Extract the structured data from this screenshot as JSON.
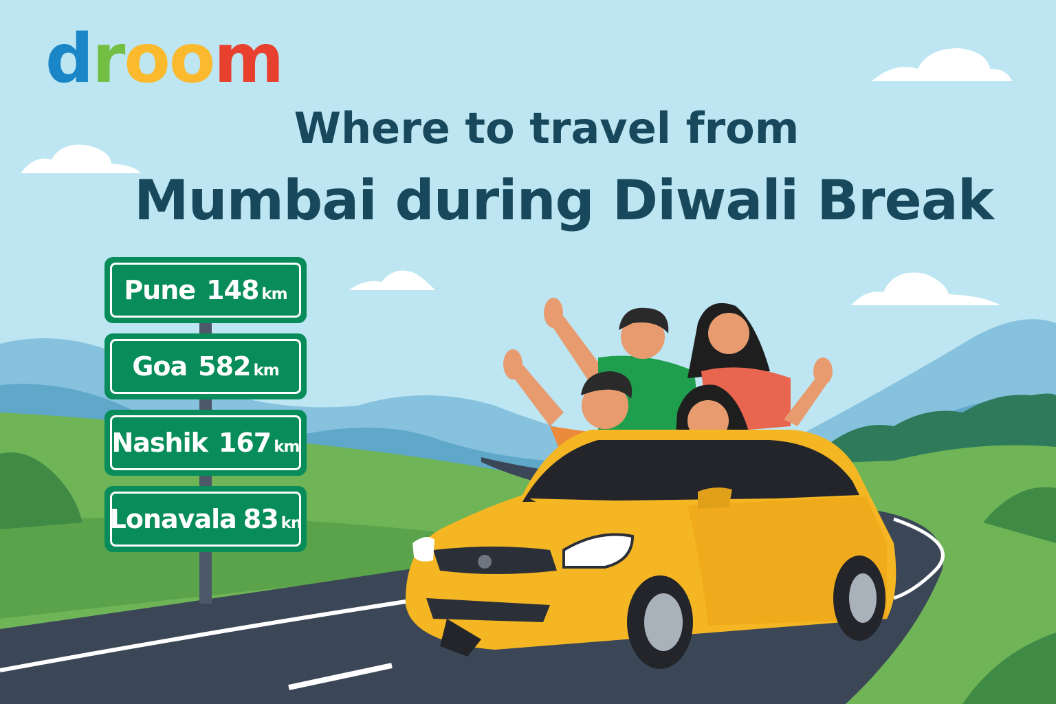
{
  "logo": {
    "letters": [
      "d",
      "r",
      "o",
      "o",
      "m"
    ],
    "colors": [
      "#1a86c8",
      "#72bf44",
      "#fbb92e",
      "#fbb92e",
      "#e8402f"
    ]
  },
  "headline": {
    "line1": "Where to travel from",
    "line2": "Mumbai during Diwali Break"
  },
  "signs": [
    {
      "place": "Pune",
      "distance": "148",
      "unit": "km"
    },
    {
      "place": "Goa",
      "distance": "582",
      "unit": "km"
    },
    {
      "place": "Nashik",
      "distance": "167",
      "unit": "km"
    },
    {
      "place": "Lonavala",
      "distance": "83",
      "unit": "kn"
    }
  ],
  "colors": {
    "sky": "#bde6f2",
    "title": "#17485c",
    "sign": "#088c5a",
    "car": "#f5b623",
    "road": "#3b4656",
    "grass": "#6fb457"
  }
}
